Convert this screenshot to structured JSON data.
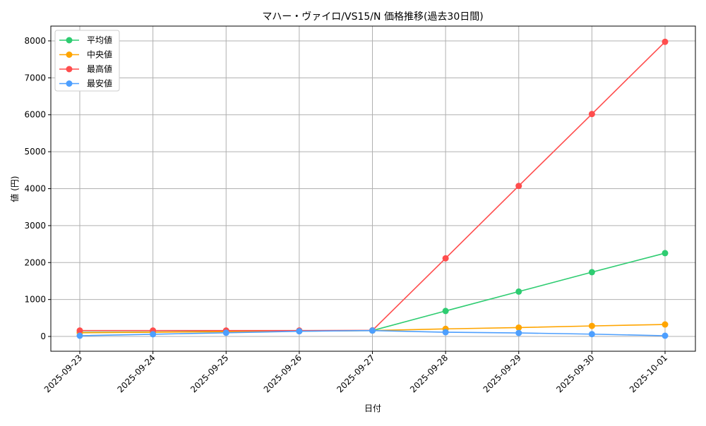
{
  "chart_data": {
    "type": "line",
    "title": "マハー・ヴァイロ/VS15/N 価格推移(過去30日間)",
    "xlabel": "日付",
    "ylabel": "値 (円)",
    "categories": [
      "2025-09-23",
      "2025-09-24",
      "2025-09-25",
      "2025-09-26",
      "2025-09-27",
      "2025-09-28",
      "2025-09-29",
      "2025-09-30",
      "2025-10-01"
    ],
    "ylim": [
      -400,
      8400
    ],
    "yticks": [
      0,
      1000,
      2000,
      3000,
      4000,
      5000,
      6000,
      7000,
      8000
    ],
    "grid": true,
    "legend": "top-left",
    "series": [
      {
        "name": "平均値",
        "color": "#2ecc71",
        "values": [
          110,
          120,
          130,
          145,
          160,
          690,
          1215,
          1740,
          2255
        ]
      },
      {
        "name": "中央値",
        "color": "#ffa500",
        "values": [
          100,
          115,
          130,
          145,
          160,
          205,
          240,
          285,
          325
        ]
      },
      {
        "name": "最高値",
        "color": "#ff4d4d",
        "values": [
          160,
          160,
          160,
          160,
          165,
          2115,
          4075,
          6020,
          7975
        ]
      },
      {
        "name": "最安値",
        "color": "#4d9fff",
        "values": [
          20,
          60,
          100,
          140,
          160,
          115,
          95,
          63,
          20
        ]
      }
    ]
  }
}
